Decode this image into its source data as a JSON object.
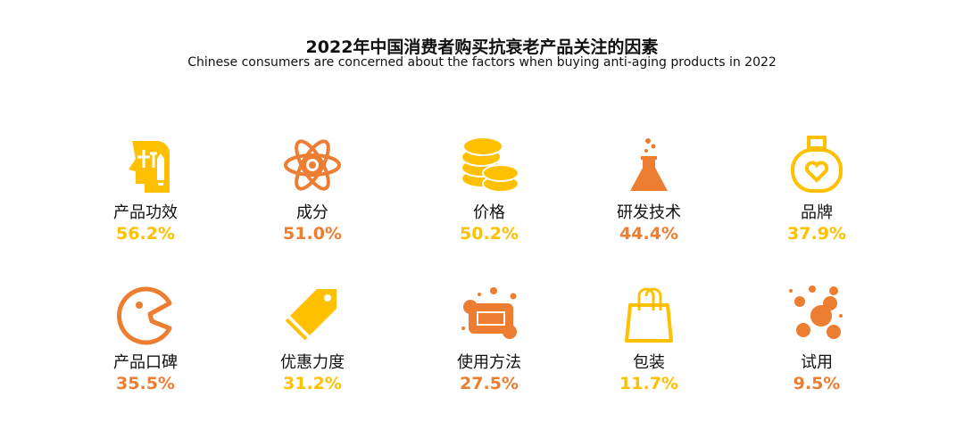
{
  "title": "2022年中国消费者购买抗衰老产品关注的因素",
  "subtitle": "Chinese consumers are concerned about the factors when buying anti-aging products in 2022",
  "colors": {
    "yellow": "#FFC000",
    "orange": "#ED7D31"
  },
  "chart_data": {
    "type": "table",
    "title": "2022年中国消费者购买抗衰老产品关注的因素",
    "subtitle": "Chinese consumers are concerned about the factors when buying anti-aging products in 2022",
    "items": [
      {
        "label": "产品功效",
        "value": "56.2%",
        "icon": "head-pencil-icon",
        "color": "#FFC000"
      },
      {
        "label": "成分",
        "value": "51.0%",
        "icon": "atom-icon",
        "color": "#ED7D31"
      },
      {
        "label": "价格",
        "value": "50.2%",
        "icon": "coins-icon",
        "color": "#FFC000"
      },
      {
        "label": "研发技术",
        "value": "44.4%",
        "icon": "flask-icon",
        "color": "#ED7D31"
      },
      {
        "label": "品牌",
        "value": "37.9%",
        "icon": "perfume-bottle-icon",
        "color": "#FFC000"
      },
      {
        "label": "产品口碑",
        "value": "35.5%",
        "icon": "pacman-mouth-icon",
        "color": "#ED7D31"
      },
      {
        "label": "优惠力度",
        "value": "31.2%",
        "icon": "price-tag-icon",
        "color": "#FFC000"
      },
      {
        "label": "使用方法",
        "value": "27.5%",
        "icon": "soap-icon",
        "color": "#ED7D31"
      },
      {
        "label": "包装",
        "value": "11.7%",
        "icon": "shopping-bag-icon",
        "color": "#FFC000"
      },
      {
        "label": "试用",
        "value": "9.5%",
        "icon": "bubbles-icon",
        "color": "#ED7D31"
      }
    ]
  }
}
